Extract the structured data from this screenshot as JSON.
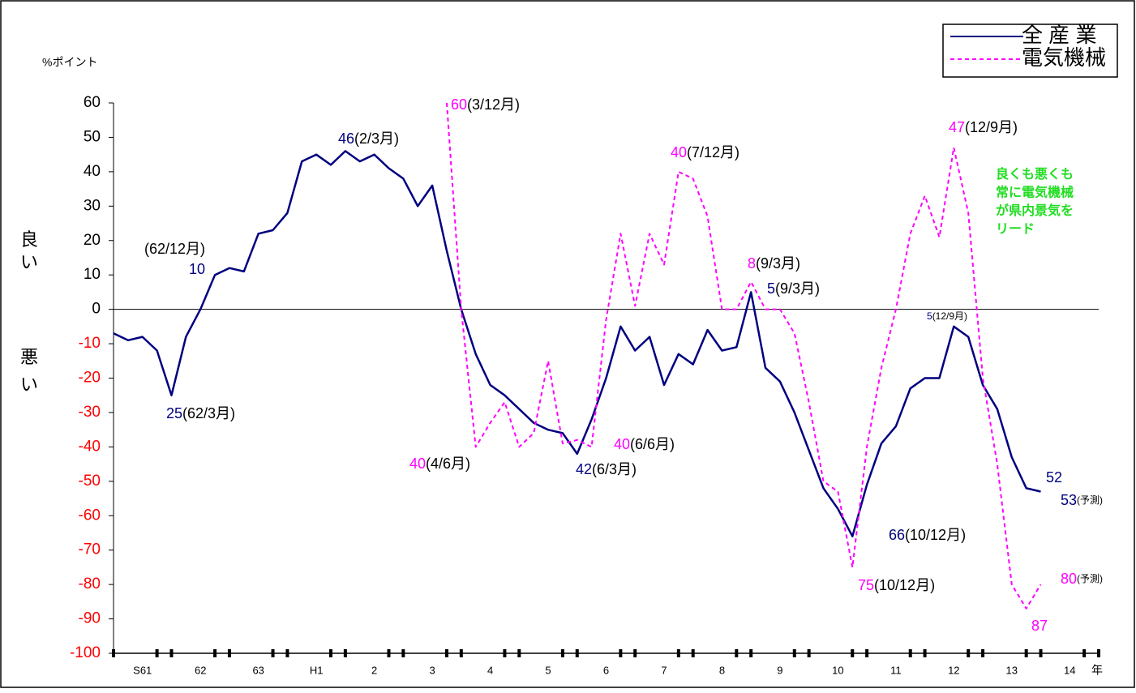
{
  "chart_data": {
    "type": "line",
    "y_unit_label": "%ポイント",
    "good_label": [
      "良",
      "い"
    ],
    "bad_label": [
      "悪",
      "い"
    ],
    "x_unit": "年",
    "xlim": [
      0,
      68
    ],
    "xticks": [
      {
        "value": 2,
        "label": "S61"
      },
      {
        "value": 6,
        "label": "62"
      },
      {
        "value": 10,
        "label": "63"
      },
      {
        "value": 14,
        "label": "H1"
      },
      {
        "value": 18,
        "label": "2"
      },
      {
        "value": 22,
        "label": "3"
      },
      {
        "value": 26,
        "label": "4"
      },
      {
        "value": 30,
        "label": "5"
      },
      {
        "value": 34,
        "label": "6"
      },
      {
        "value": 38,
        "label": "7"
      },
      {
        "value": 42,
        "label": "8"
      },
      {
        "value": 46,
        "label": "9"
      },
      {
        "value": 50,
        "label": "10"
      },
      {
        "value": 54,
        "label": "11"
      },
      {
        "value": 58,
        "label": "12"
      },
      {
        "value": 62,
        "label": "13"
      },
      {
        "value": 66,
        "label": "14"
      }
    ],
    "ylim": [
      -100,
      60
    ],
    "yticks": [
      -100,
      -90,
      -80,
      -70,
      -60,
      -50,
      -40,
      -30,
      -20,
      -10,
      0,
      10,
      20,
      30,
      40,
      50,
      60
    ],
    "negative_tick_color": "#ff0000",
    "zero_line": true,
    "series": [
      {
        "name": "全 産 業",
        "color": "#000080",
        "dash": false,
        "x": [
          0,
          1,
          2,
          3,
          4,
          5,
          6,
          7,
          8,
          9,
          10,
          11,
          12,
          13,
          14,
          15,
          16,
          17,
          18,
          19,
          20,
          21,
          22,
          23,
          24,
          25,
          26,
          27,
          28,
          29,
          30,
          31,
          32,
          33,
          34,
          35,
          36,
          37,
          38,
          39,
          40,
          41,
          42,
          43,
          44,
          45,
          46,
          47,
          48,
          49,
          50,
          51,
          52,
          53,
          54,
          55,
          56,
          57,
          58,
          59,
          60,
          61,
          62,
          63,
          64
        ],
        "values": [
          -7,
          -9,
          -8,
          -12,
          -25,
          -8,
          0,
          10,
          12,
          11,
          22,
          23,
          28,
          43,
          45,
          42,
          46,
          43,
          45,
          41,
          38,
          30,
          36,
          17,
          0,
          -13,
          -22,
          -25,
          -29,
          -33,
          -35,
          -36,
          -42,
          -32,
          -20,
          -5,
          -12,
          -8,
          -22,
          -13,
          -16,
          -6,
          -12,
          -11,
          5,
          -17,
          -21,
          -30,
          -41,
          -52,
          -58,
          -66,
          -51,
          -39,
          -34,
          -23,
          -20,
          -20,
          -5,
          -8,
          -22,
          -29,
          -43,
          -52,
          -53
        ]
      },
      {
        "name": "電気機械",
        "color": "#ff00ff",
        "dash": true,
        "x": [
          23,
          24,
          25,
          26,
          27,
          28,
          29,
          30,
          31,
          32,
          33,
          34,
          35,
          36,
          37,
          38,
          39,
          40,
          41,
          42,
          43,
          44,
          45,
          46,
          47,
          48,
          49,
          50,
          51,
          52,
          53,
          54,
          55,
          56,
          57,
          58,
          59,
          60,
          61,
          62,
          63,
          64
        ],
        "values": [
          60,
          0,
          -40,
          -33,
          -27,
          -40,
          -36,
          -15,
          -39,
          -38,
          -40,
          -3,
          22,
          1,
          22,
          13,
          40,
          38,
          27,
          0,
          0,
          8,
          0,
          0,
          -7,
          -27,
          -50,
          -53,
          -75,
          -40,
          -17,
          0,
          22,
          33,
          21,
          47,
          28,
          -20,
          -45,
          -80,
          -87,
          -80
        ]
      }
    ],
    "annotations": [
      {
        "number": "25",
        "note": "(62/3月)",
        "series": 0
      },
      {
        "number": "10",
        "note": "(62/12月)",
        "series": 0
      },
      {
        "number": "46",
        "note": "(2/3月)",
        "series": 0
      },
      {
        "number": "60",
        "note": "(3/12月)",
        "series": 1
      },
      {
        "number": "40",
        "note": "(4/6月)",
        "series": 1
      },
      {
        "number": "42",
        "note": "(6/3月)",
        "series": 0
      },
      {
        "number": "40",
        "note": "(6/6月)",
        "series": 1
      },
      {
        "number": "40",
        "note": "(7/12月)",
        "series": 1
      },
      {
        "number": "8",
        "note": "(9/3月)",
        "series": 1
      },
      {
        "number": "5",
        "note": "(9/3月)",
        "series": 0
      },
      {
        "number": "5",
        "note": "(12/9月)",
        "series": 0
      },
      {
        "number": "47",
        "note": "(12/9月)",
        "series": 1
      },
      {
        "number": "66",
        "note": "(10/12月)",
        "series": 0
      },
      {
        "number": "75",
        "note": "(10/12月)",
        "series": 1
      },
      {
        "number": "52",
        "series": 0
      },
      {
        "number": "53",
        "note": "(予測)",
        "series": 0
      },
      {
        "number": "80",
        "note": "(予測)",
        "series": 1
      },
      {
        "number": "87",
        "series": 1
      }
    ],
    "comment": [
      "良くも悪くも",
      "常に電気機械",
      "が県内景気を",
      "リード"
    ],
    "comment_color": "#22dd22"
  }
}
